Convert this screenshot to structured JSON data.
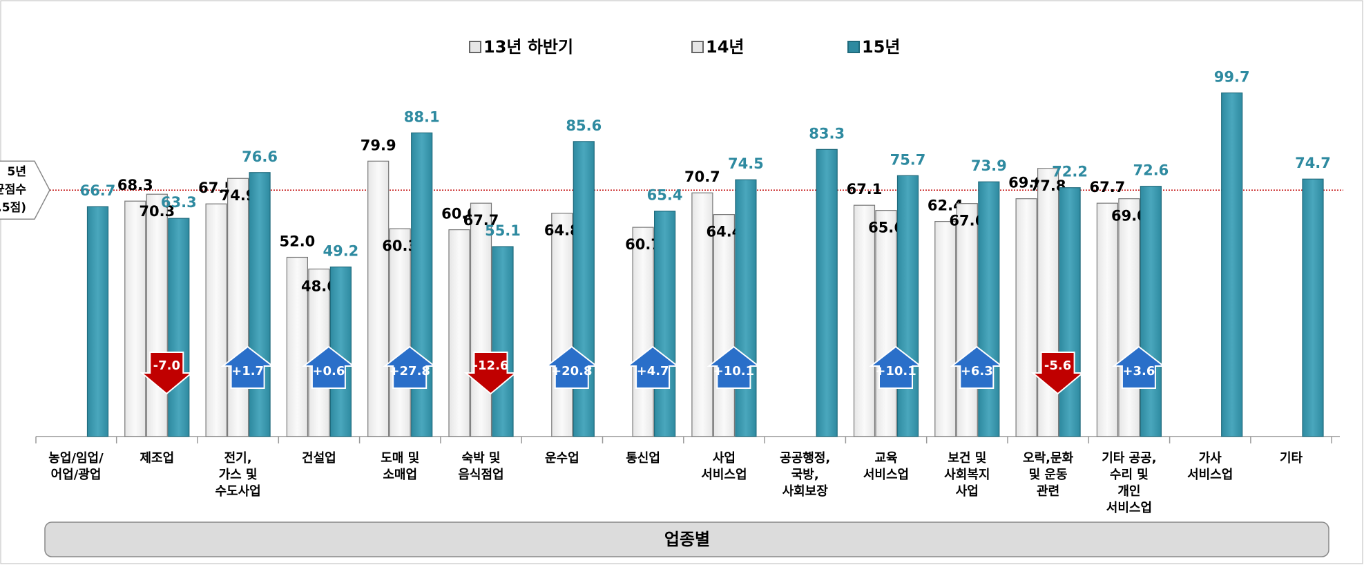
{
  "chart_data": {
    "type": "bar",
    "categories": [
      "농업/임업/\n어업/광업",
      "제조업",
      "전기,\n가스 및\n수도사업",
      "건설업",
      "도매 및\n소매업",
      "숙박 및\n음식점업",
      "운수업",
      "통신업",
      "사업\n서비스업",
      "공공행정,\n국방,\n사회보장",
      "교육\n서비스업",
      "보건 및\n사회복지\n사업",
      "오락,문화\n및 운동\n관련",
      "기타 공공,\n수리 및\n개인\n서비스업",
      "가사\n서비스업",
      "기타"
    ],
    "series": [
      {
        "name": "13년 하반기",
        "color": "#e6e6e6",
        "values": [
          null,
          68.3,
          67.5,
          52.0,
          79.9,
          60.0,
          null,
          null,
          70.7,
          null,
          67.1,
          62.4,
          69.0,
          67.7,
          null,
          null
        ],
        "value_labels": [
          null,
          "68.3",
          "67.5",
          "52.0",
          "79.9",
          "60.0",
          null,
          null,
          "70.7",
          null,
          "67.1",
          "62.4",
          "69.0",
          "67.7",
          null,
          null
        ]
      },
      {
        "name": "14년",
        "color": "#e6e6e6",
        "values": [
          null,
          70.3,
          74.9,
          48.6,
          60.3,
          67.7,
          64.8,
          60.7,
          64.4,
          null,
          65.6,
          67.6,
          77.8,
          69.0,
          null,
          null
        ],
        "value_labels": [
          null,
          "70.3",
          "74.9",
          "48.6",
          "60.3",
          "67.7",
          "64.8",
          "60.7",
          "64.4",
          null,
          "65.6",
          "67.6",
          "77.8",
          "69.0",
          null,
          null
        ]
      },
      {
        "name": "15년",
        "color": "#2e8aa0",
        "values": [
          66.7,
          63.3,
          76.6,
          49.2,
          88.1,
          55.1,
          85.6,
          65.4,
          74.5,
          83.3,
          75.7,
          73.9,
          72.2,
          72.6,
          99.7,
          74.7
        ],
        "value_labels": [
          "66.7",
          "63.3",
          "76.6",
          "49.2",
          "88.1",
          "55.1",
          "85.6",
          "65.4",
          "74.5",
          "83.3",
          "75.7",
          "73.9",
          "72.2",
          "72.6",
          "99.7",
          "74.7"
        ]
      }
    ],
    "changes": {
      "values": [
        null,
        -7.0,
        1.7,
        0.6,
        27.8,
        -12.6,
        20.8,
        4.7,
        10.1,
        null,
        10.1,
        6.3,
        -5.6,
        3.6,
        null,
        null
      ],
      "value_labels": [
        null,
        "-7.0",
        "+1.7",
        "+0.6",
        "+27.8",
        "-12.6",
        "+20.8",
        "+4.7",
        "+10.1",
        null,
        "+10.1",
        "+6.3",
        "-5.6",
        "+3.6",
        null,
        null
      ],
      "up_color": "#2a6fc9",
      "down_color": "#c00000"
    },
    "reference": {
      "value": 71.5,
      "label": [
        "5년",
        "균점수",
        ".5점)"
      ],
      "color": "#c00000"
    },
    "ylim": [
      0,
      100
    ],
    "x_axis_label": "업종별"
  }
}
